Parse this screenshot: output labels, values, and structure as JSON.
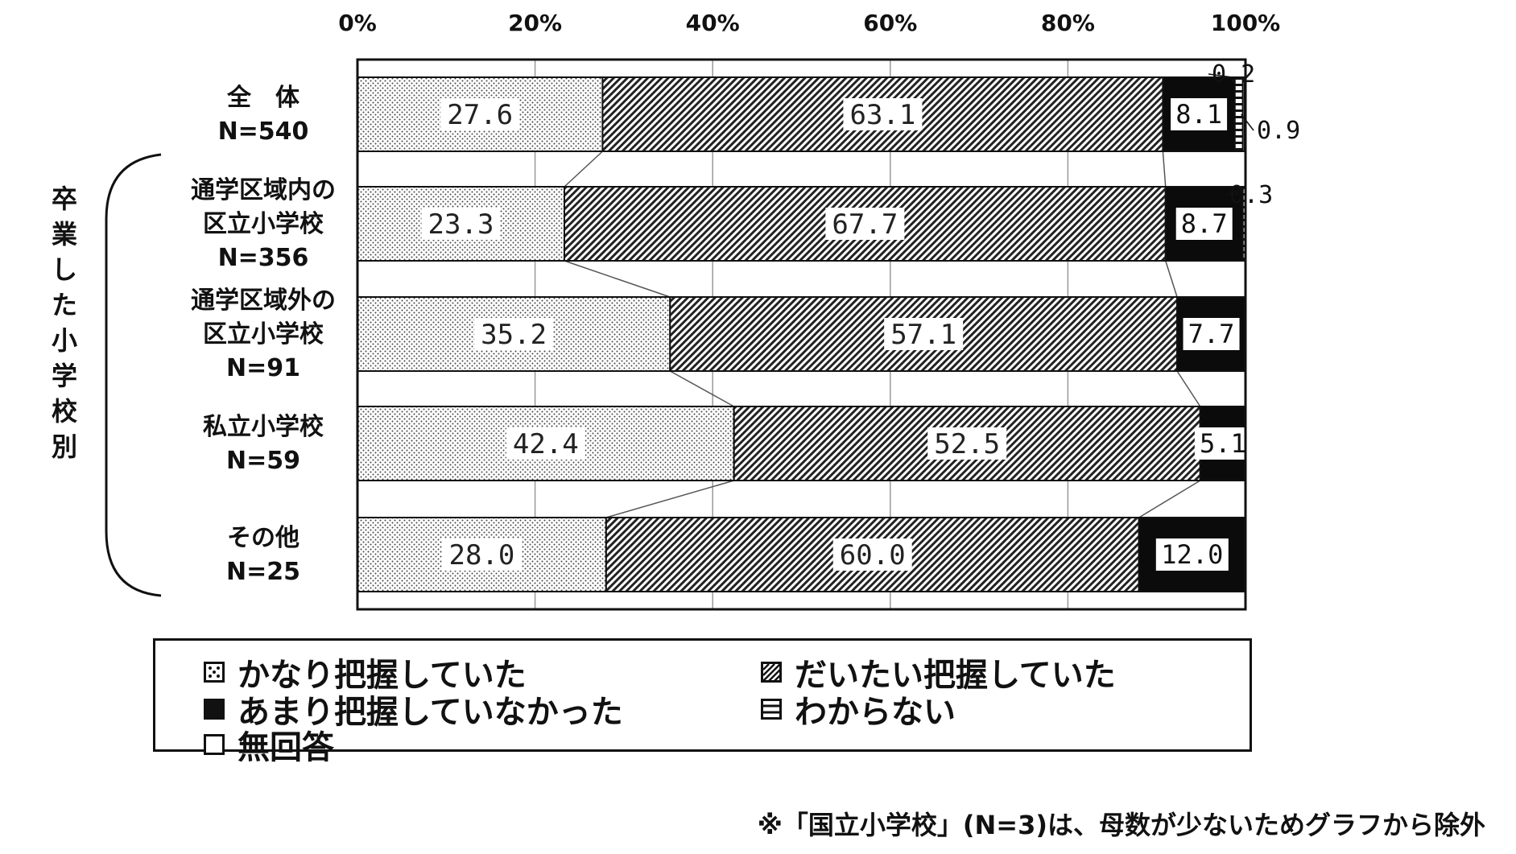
{
  "chart_data": {
    "type": "bar",
    "orientation": "horizontal",
    "stacked": true,
    "x_ticks": [
      "0%",
      "20%",
      "40%",
      "60%",
      "80%",
      "100%"
    ],
    "xlim": [
      0,
      100
    ],
    "group_label": "卒業した小学校別",
    "categories": [
      {
        "label_lines": [
          "全　体",
          "N=540"
        ],
        "in_group": false
      },
      {
        "label_lines": [
          "通学区域内の",
          "区立小学校",
          "N=356"
        ],
        "in_group": true
      },
      {
        "label_lines": [
          "通学区域外の",
          "区立小学校",
          "N=91"
        ],
        "in_group": true
      },
      {
        "label_lines": [
          "私立小学校",
          "N=59"
        ],
        "in_group": true
      },
      {
        "label_lines": [
          "その他",
          "N=25"
        ],
        "in_group": true
      }
    ],
    "series": [
      {
        "name": "かなり把握していた",
        "values": [
          27.6,
          23.3,
          35.2,
          42.4,
          28.0
        ],
        "labels": [
          "27.6",
          "23.3",
          "35.2",
          "42.4",
          "28.0"
        ],
        "pattern": "dots"
      },
      {
        "name": "だいたい把握していた",
        "values": [
          63.1,
          67.7,
          57.1,
          52.5,
          60.0
        ],
        "labels": [
          "63.1",
          "67.7",
          "57.1",
          "52.5",
          "60.0"
        ],
        "pattern": "hatch"
      },
      {
        "name": "あまり把握していなかった",
        "values": [
          8.1,
          8.7,
          7.7,
          5.1,
          12.0
        ],
        "labels": [
          "8.1",
          "8.7",
          "7.7",
          "5.1",
          "12.0"
        ],
        "pattern": "solid"
      },
      {
        "name": "わからない",
        "values": [
          0.9,
          0.3,
          0,
          0,
          0
        ],
        "labels": [
          "0.9",
          "0.3",
          "",
          "",
          ""
        ],
        "pattern": "lines"
      },
      {
        "name": "無回答",
        "values": [
          0.2,
          0,
          0,
          0,
          0
        ],
        "labels": [
          "0.2",
          "",
          "",
          "",
          ""
        ],
        "pattern": "empty"
      }
    ],
    "legend_position": "bottom",
    "grid": true
  },
  "legend": [
    {
      "name": "かなり把握していた",
      "pattern": "dots"
    },
    {
      "name": "だいたい把握していた",
      "pattern": "hatch"
    },
    {
      "name": "あまり把握していなかった",
      "pattern": "solid"
    },
    {
      "name": "わからない",
      "pattern": "lines"
    },
    {
      "name": "無回答",
      "pattern": "empty"
    }
  ],
  "note": "※「国立小学校」(N=3)は、母数が少ないためグラフから除外"
}
